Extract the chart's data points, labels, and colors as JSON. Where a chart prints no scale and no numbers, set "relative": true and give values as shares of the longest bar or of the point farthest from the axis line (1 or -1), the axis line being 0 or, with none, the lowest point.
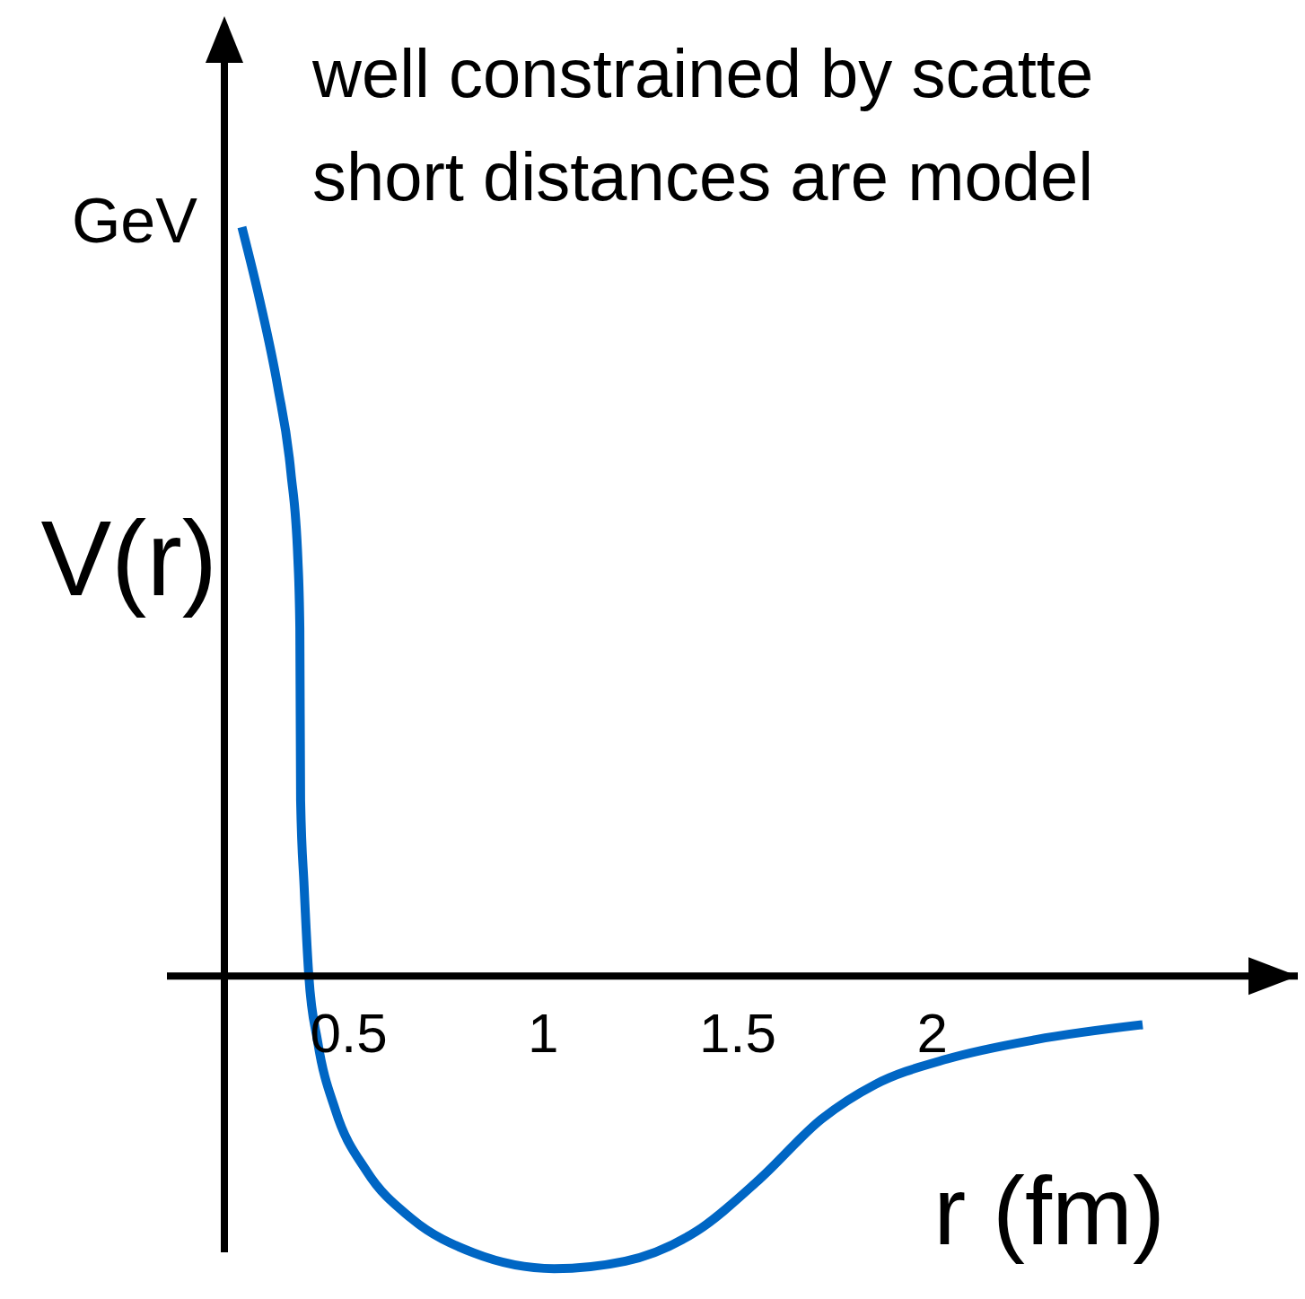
{
  "chart_data": {
    "type": "line",
    "relative": true,
    "xlabel": "r (fm)",
    "ylabel": "V(r)",
    "annotations": [
      "GeV",
      "well constrained by scatte",
      "short distances are model"
    ],
    "x": [
      0.225,
      0.271,
      0.317,
      0.351,
      0.369,
      0.374,
      0.376,
      0.385,
      0.397,
      0.42,
      0.466,
      0.546,
      0.661,
      0.821,
      1.028,
      1.211,
      1.394,
      1.555,
      1.716,
      1.853,
      2.037,
      2.266,
      2.541
    ],
    "series": [
      {
        "color": "#0066c4",
        "values": [
          1.0,
          0.902,
          0.787,
          0.672,
          0.556,
          0.464,
          0.234,
          0.119,
          0,
          -0.089,
          -0.181,
          -0.262,
          -0.325,
          -0.371,
          -0.392,
          -0.382,
          -0.342,
          -0.273,
          -0.192,
          -0.146,
          -0.112,
          -0.086,
          -0.066
        ]
      }
    ],
    "xlim": [
      0.18,
      2.94
    ],
    "xticks": [
      0.5,
      1,
      1.5,
      2
    ]
  }
}
